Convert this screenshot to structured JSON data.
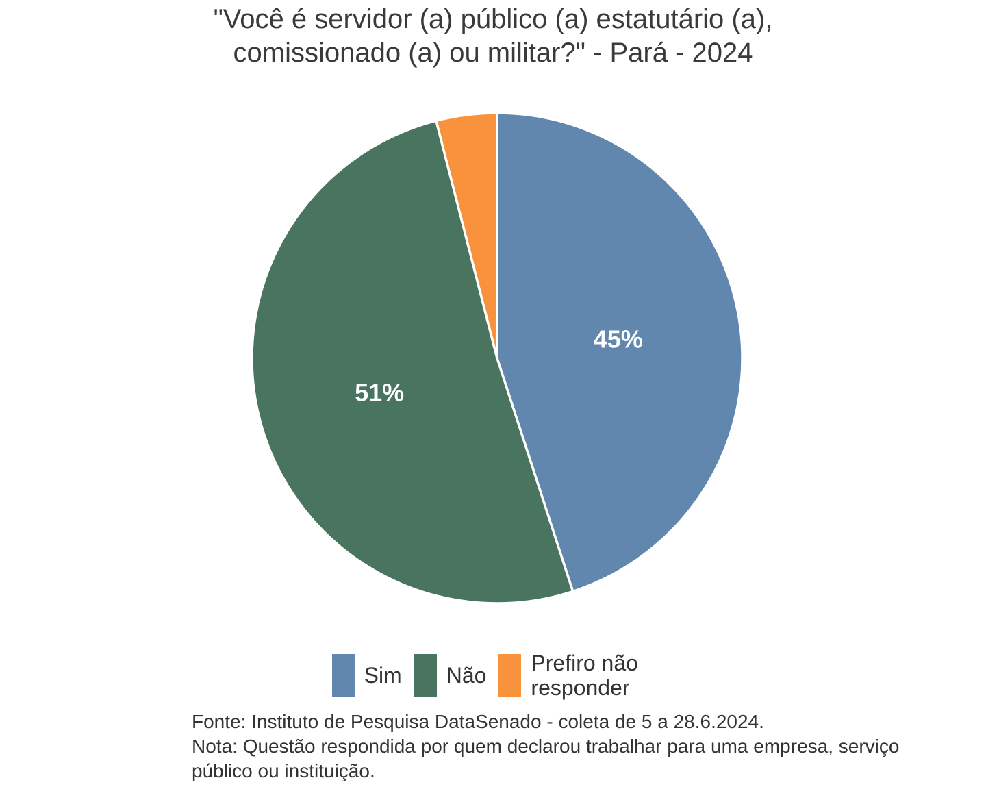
{
  "chart_data": {
    "type": "pie",
    "title": "\"Você é servidor (a) público (a) estatutário (a),\ncomissionado (a) ou militar?\" - Pará - 2024",
    "categories": [
      "Sim",
      "Não",
      "Prefiro não responder"
    ],
    "values": [
      45,
      51,
      4
    ],
    "slices": [
      {
        "label": "Sim",
        "value": 45,
        "percent_label": "45%",
        "color": "#6287AE",
        "show_label": true
      },
      {
        "label": "Não",
        "value": 51,
        "percent_label": "51%",
        "color": "#487460",
        "show_label": true
      },
      {
        "label": "Prefiro não responder",
        "value": 4,
        "percent_label": "4%",
        "color": "#F9923C",
        "show_label": false
      }
    ],
    "start_angle_deg": 0,
    "direction": "clockwise",
    "divider_color": "#FFFFFF",
    "label_color": "#FFFFFF",
    "label_radius_fraction": 0.5,
    "legend_position": "bottom",
    "grid": false,
    "source": "Fonte: Instituto de Pesquisa DataSenado - coleta de 5 a 28.6.2024.",
    "note": "Nota: Questão respondida por quem declarou trabalhar para uma empresa, serviço\npúblico ou instituição."
  }
}
